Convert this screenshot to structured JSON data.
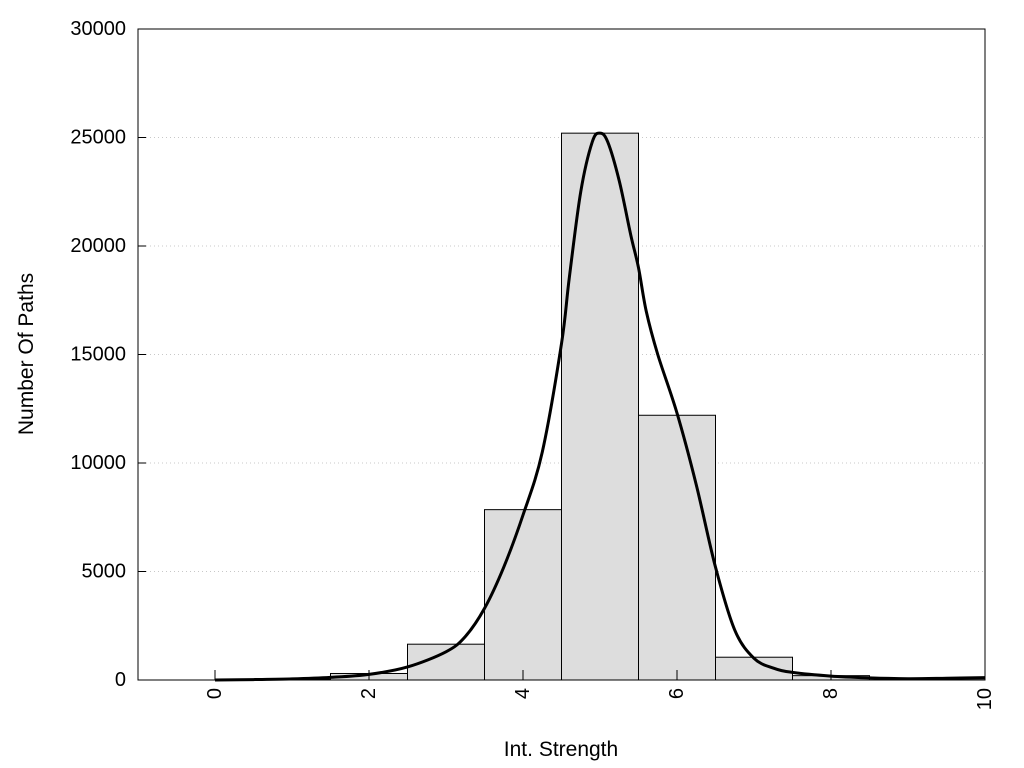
{
  "chart_data": {
    "type": "bar",
    "title": "",
    "xlabel": "Int. Strength",
    "ylabel": "Number Of Paths",
    "xlim": [
      -1,
      10
    ],
    "ylim": [
      0,
      30000
    ],
    "x_ticks": [
      0,
      2,
      4,
      6,
      8,
      10
    ],
    "y_ticks": [
      0,
      5000,
      10000,
      15000,
      20000,
      25000,
      30000
    ],
    "grid": "horizontal-dotted",
    "bar_color": "#dddddd",
    "bar_edge_color": "#000000",
    "line_color": "#000000",
    "bins": [
      {
        "center": 0,
        "value": 0
      },
      {
        "center": 1,
        "value": 30
      },
      {
        "center": 2,
        "value": 300
      },
      {
        "center": 3,
        "value": 1650
      },
      {
        "center": 4,
        "value": 7850
      },
      {
        "center": 5,
        "value": 25200
      },
      {
        "center": 6,
        "value": 12200
      },
      {
        "center": 7,
        "value": 1050
      },
      {
        "center": 8,
        "value": 200
      },
      {
        "center": 9,
        "value": 80
      },
      {
        "center": 10,
        "value": 60
      }
    ],
    "density_curve": {
      "x": [
        0,
        0.5,
        1,
        1.5,
        2,
        2.5,
        3,
        3.25,
        3.5,
        3.75,
        4,
        4.25,
        4.5,
        4.6,
        4.75,
        4.9,
        5,
        5.1,
        5.25,
        5.4,
        5.5,
        5.6,
        5.75,
        6,
        6.25,
        6.5,
        6.75,
        7,
        7.25,
        7.5,
        8,
        8.5,
        9,
        9.5,
        10
      ],
      "y": [
        0,
        20,
        50,
        120,
        260,
        600,
        1300,
        2000,
        3300,
        5200,
        7600,
        10500,
        15500,
        18500,
        22500,
        24800,
        25200,
        24800,
        23000,
        20500,
        19000,
        17000,
        15000,
        12300,
        9000,
        5200,
        2300,
        1000,
        550,
        350,
        180,
        100,
        60,
        80,
        110
      ]
    }
  }
}
